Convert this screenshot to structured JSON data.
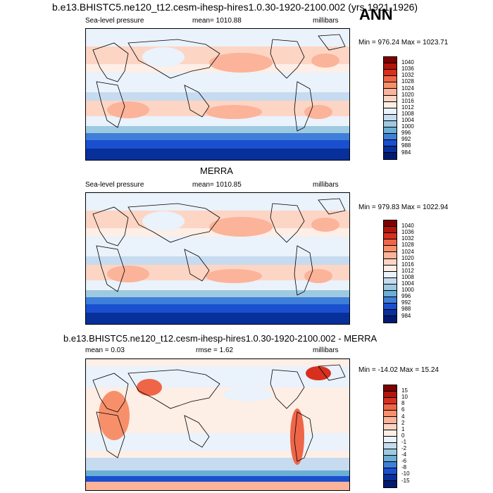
{
  "header": {
    "title": "b.e13.BHISTC5.ne120_t12.cesm-ihesp-hires1.0.30-1920-2100.002 (yrs 1921-1926)",
    "season": "ANN"
  },
  "panels": [
    {
      "id": "model",
      "section_title": "",
      "left": "Sea-level pressure",
      "center": "mean= 1010.88",
      "right": "millibars",
      "minmax": "Min = 976.24 Max = 1023.71",
      "levels": [
        "1040",
        "1036",
        "1032",
        "1028",
        "1024",
        "1020",
        "1016",
        "1012",
        "1008",
        "1004",
        "1000",
        "996",
        "992",
        "988",
        "984"
      ],
      "colors": [
        "#7f0000",
        "#b2150c",
        "#d7301f",
        "#ef6548",
        "#f7906a",
        "#fbb39a",
        "#fdd5c4",
        "#fdeee6",
        "#eaf2fb",
        "#c6dbef",
        "#9ecae1",
        "#6baed6",
        "#3f7fd9",
        "#1a4fd0",
        "#08309a",
        "#001a73"
      ]
    },
    {
      "id": "obs",
      "section_title": "MERRA",
      "left": "Sea-level pressure",
      "center": "mean= 1010.85",
      "right": "millibars",
      "minmax": "Min = 979.83 Max = 1022.94",
      "levels": [
        "1040",
        "1036",
        "1032",
        "1028",
        "1024",
        "1020",
        "1016",
        "1012",
        "1008",
        "1004",
        "1000",
        "996",
        "992",
        "988",
        "984"
      ],
      "colors": [
        "#7f0000",
        "#b2150c",
        "#d7301f",
        "#ef6548",
        "#f7906a",
        "#fbb39a",
        "#fdd5c4",
        "#fdeee6",
        "#eaf2fb",
        "#c6dbef",
        "#9ecae1",
        "#6baed6",
        "#3f7fd9",
        "#1a4fd0",
        "#08309a",
        "#001a73"
      ]
    },
    {
      "id": "diff",
      "section_title": "b.e13.BHISTC5.ne120_t12.cesm-ihesp-hires1.0.30-1920-2100.002 - MERRA",
      "left": "mean =   0.03",
      "center": "rmse =   1.62",
      "right": "millibars",
      "minmax": "Min = -14.02 Max =  15.24",
      "levels": [
        "15",
        "10",
        "8",
        "6",
        "4",
        "2",
        "1",
        "0",
        "-1",
        "-2",
        "-4",
        "-6",
        "-8",
        "-10",
        "-15"
      ],
      "colors": [
        "#7f0000",
        "#b2150c",
        "#d7301f",
        "#ef6548",
        "#f7906a",
        "#fbb39a",
        "#fdd5c4",
        "#fdeee6",
        "#eaf2fb",
        "#c6dbef",
        "#9ecae1",
        "#6baed6",
        "#3f7fd9",
        "#1a4fd0",
        "#08309a",
        "#001a73"
      ]
    }
  ]
}
